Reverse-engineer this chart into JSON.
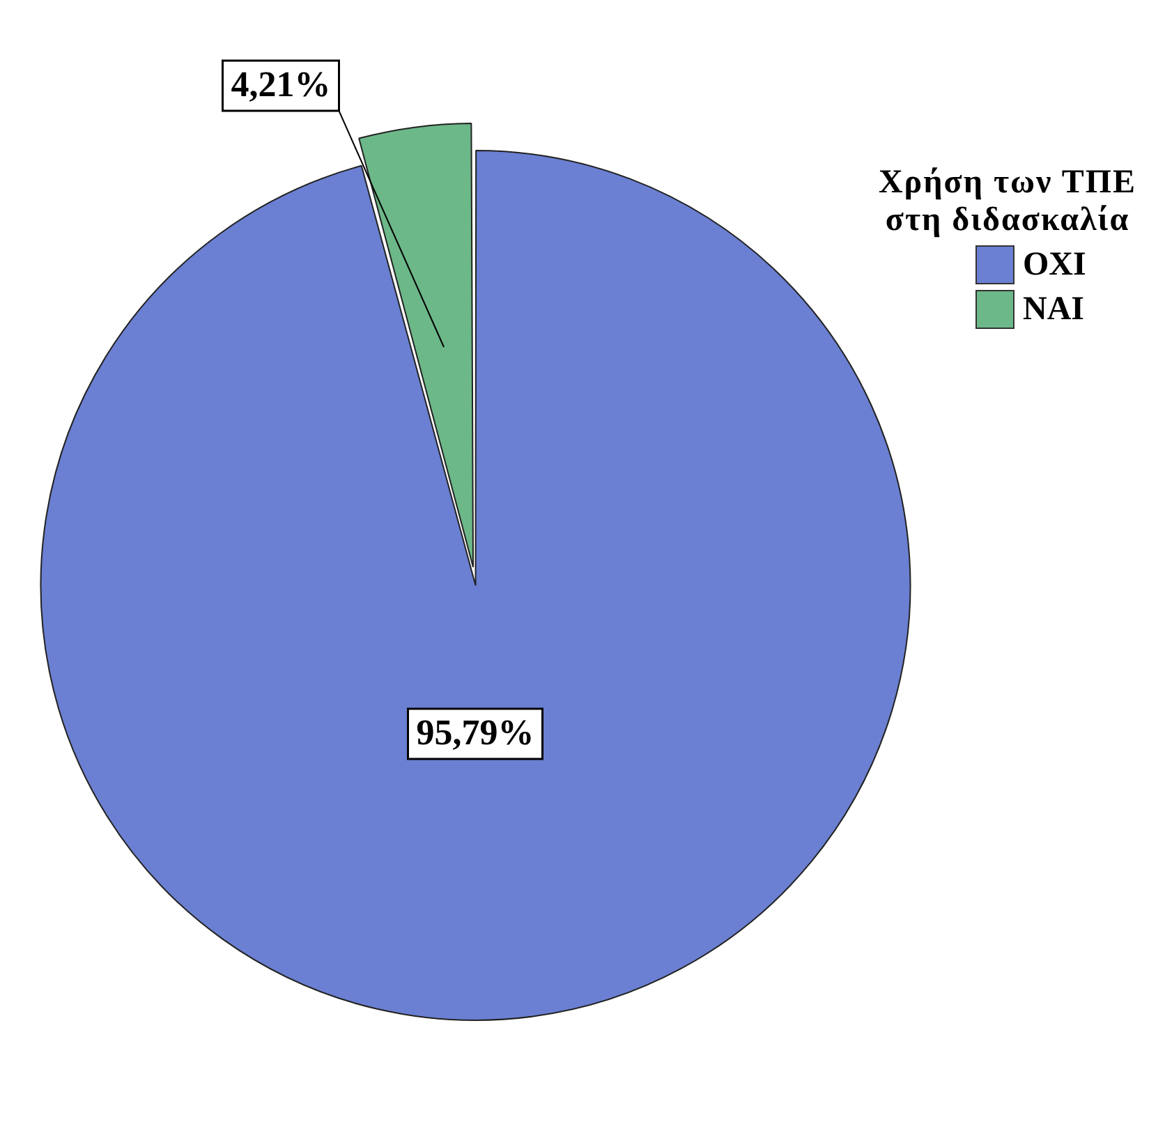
{
  "chart_data": {
    "type": "pie",
    "legend_title": "Χρήση των ΤΠΕ στη διδασκαλία",
    "legend": "top right",
    "categories": [
      "ΟΧΙ",
      "ΝΑΙ"
    ],
    "values": [
      95.79,
      4.21
    ],
    "colors": [
      "#6b80d2",
      "#6cb888"
    ],
    "value_labels": [
      "95,79%",
      "4,21%"
    ]
  }
}
